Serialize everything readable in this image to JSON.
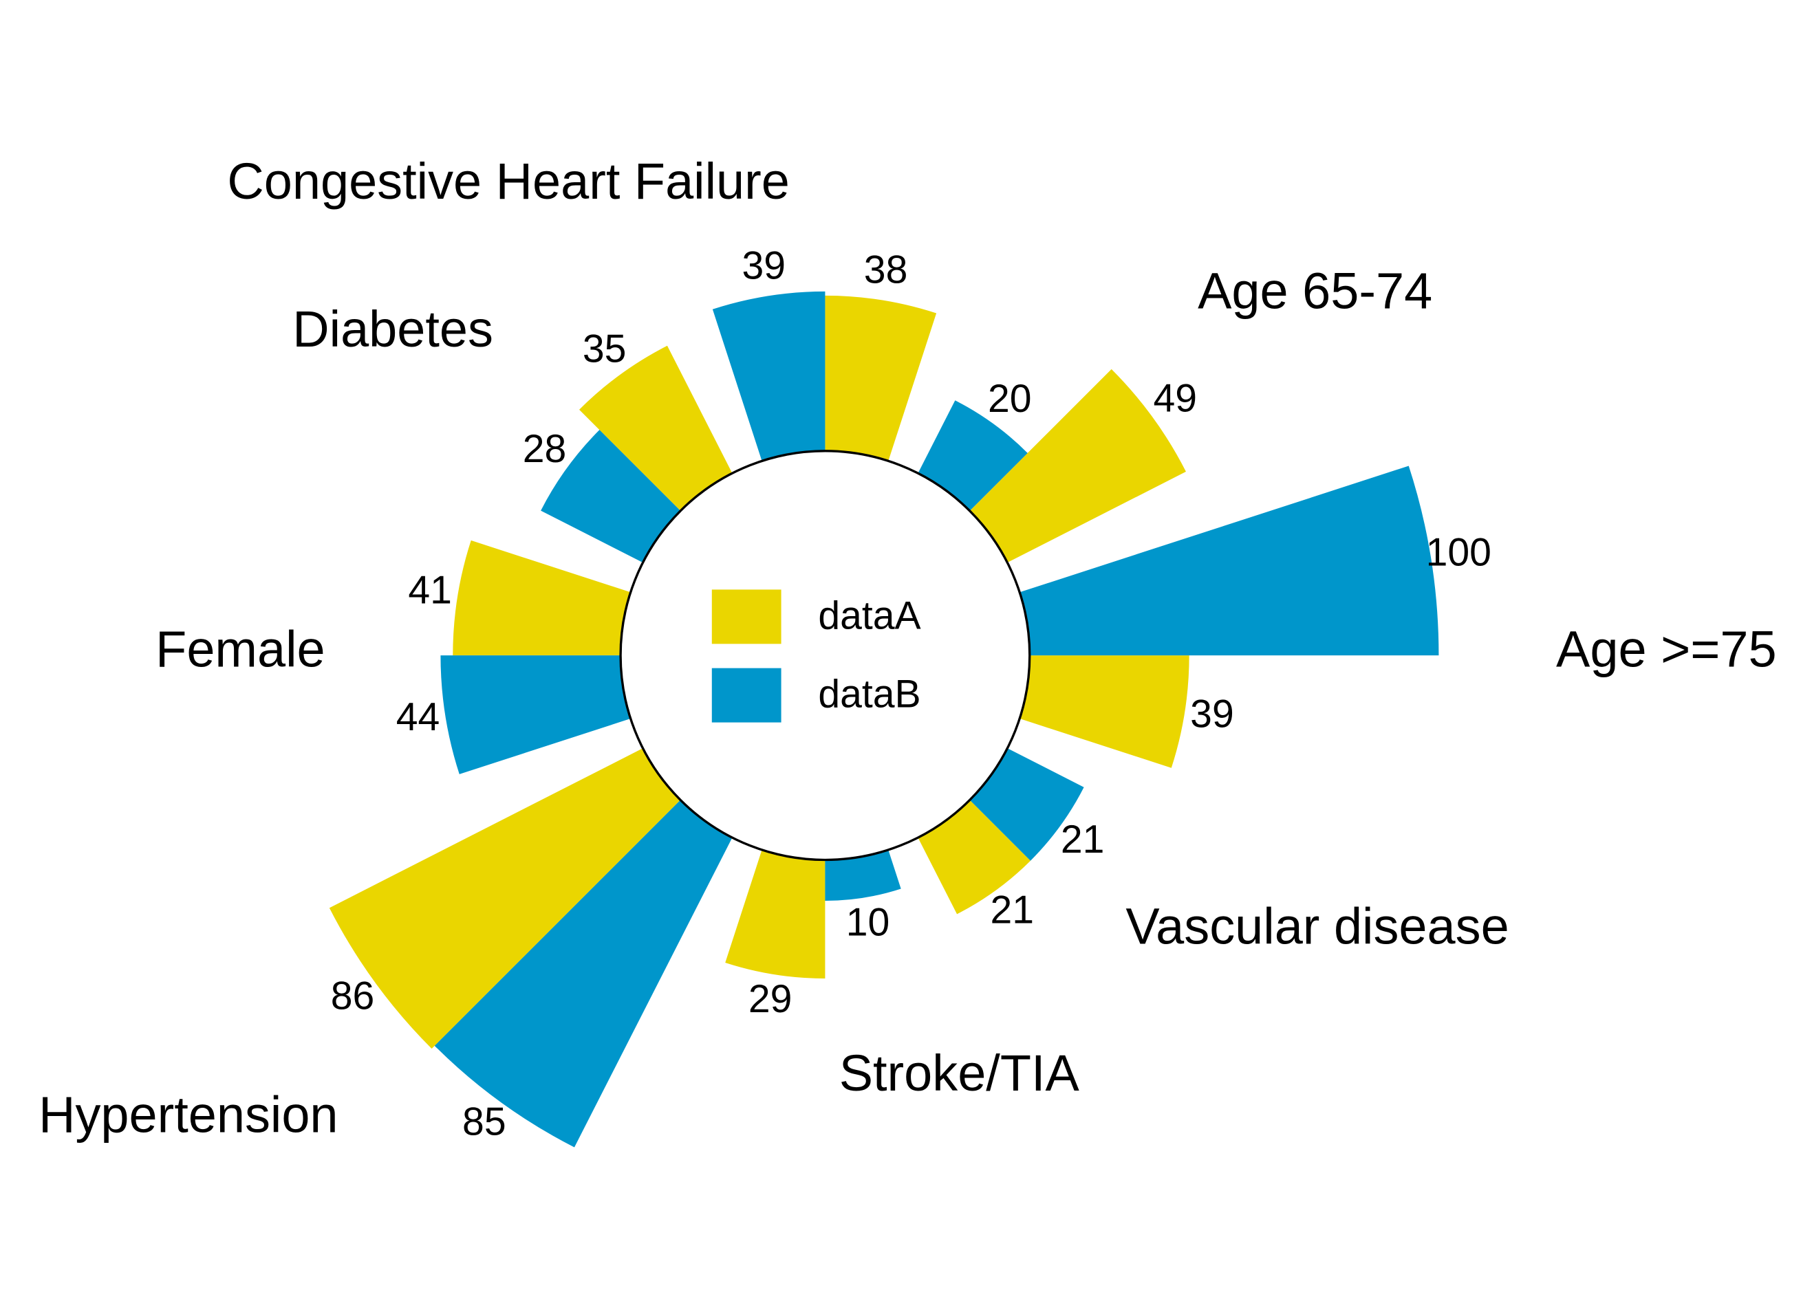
{
  "chart_data": {
    "type": "radial_bar",
    "categories": [
      "Congestive Heart Failure",
      "Age 65-74",
      "Age >=75",
      "Vascular disease",
      "Stroke/TIA",
      "Hypertension",
      "Female",
      "Diabetes"
    ],
    "series": [
      {
        "name": "dataA",
        "color": "#ead600",
        "values": [
          38,
          49,
          39,
          21,
          29,
          86,
          41,
          35
        ]
      },
      {
        "name": "dataB",
        "color": "#0096cb",
        "values": [
          39,
          20,
          100,
          21,
          10,
          85,
          44,
          28
        ]
      }
    ],
    "ylim": [
      0,
      100
    ],
    "legend": "center"
  }
}
